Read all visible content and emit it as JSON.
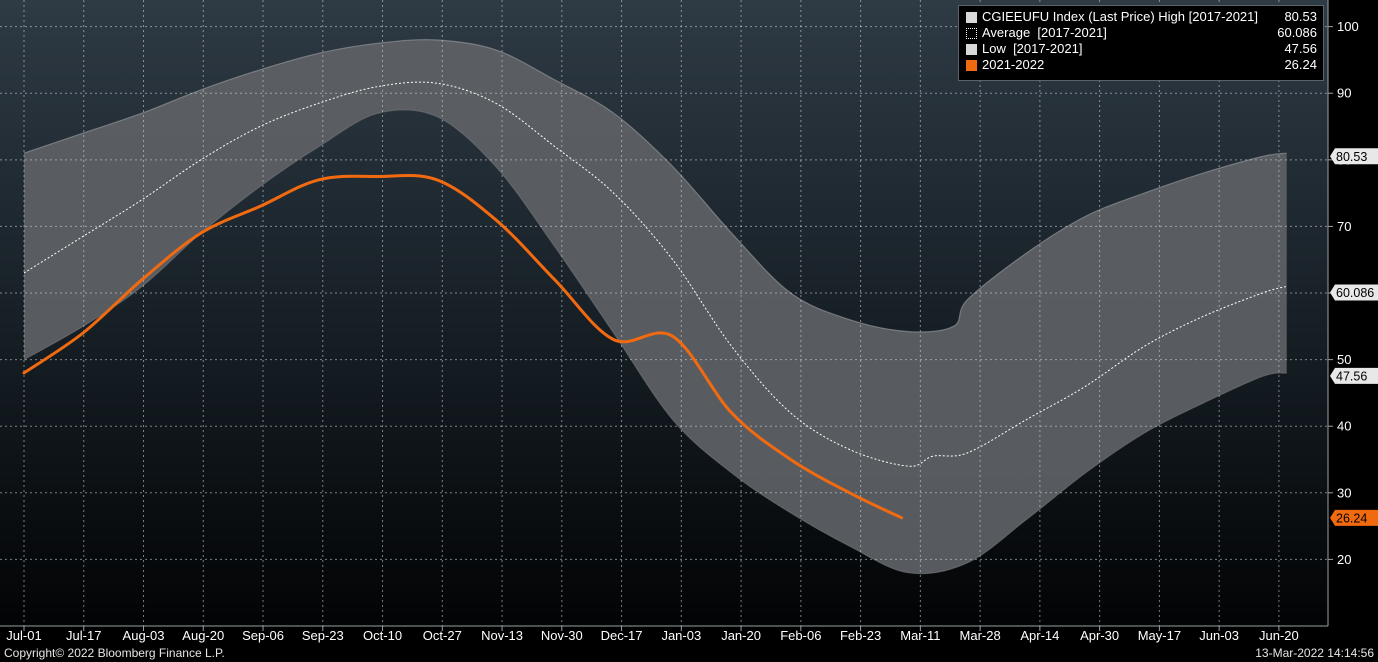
{
  "chart_data": {
    "type": "line",
    "title": "",
    "xlabel": "",
    "ylabel": "",
    "ylim": [
      10,
      104
    ],
    "grid": true,
    "legend_placement": "top-right",
    "x_tick_labels": [
      "Jul-01",
      "Jul-17",
      "Aug-03",
      "Aug-20",
      "Sep-06",
      "Sep-23",
      "Oct-10",
      "Oct-27",
      "Nov-13",
      "Nov-30",
      "Dec-17",
      "Jan-03",
      "Jan-20",
      "Feb-06",
      "Feb-23",
      "Mar-11",
      "Mar-28",
      "Apr-14",
      "Apr-30",
      "May-17",
      "Jun-03",
      "Jun-20"
    ],
    "y_ticks": [
      20,
      30,
      40,
      50,
      60,
      70,
      80,
      90,
      100
    ],
    "x_range": [
      0,
      369
    ],
    "series": [
      {
        "name": "CGIEEUFU Index (Last Price) High [2017-2021]",
        "legend_value": "80.53",
        "last_value_label": "80.53",
        "color": "#8e9195",
        "x": [
          0,
          17,
          34,
          51,
          68,
          85,
          102,
          119,
          136,
          153,
          170,
          187,
          204,
          221,
          238,
          255,
          268,
          272,
          289,
          306,
          323,
          340,
          357,
          364
        ],
        "y": [
          81,
          84,
          87,
          90.5,
          93.5,
          96,
          97.5,
          98,
          96.5,
          92,
          87,
          79,
          69,
          60,
          56,
          54.2,
          55,
          59,
          66,
          71.5,
          75,
          78,
          80.5,
          81
        ]
      },
      {
        "name": "Average  [2017-2021]",
        "legend_value": "60.086",
        "last_value_label": "60.086",
        "color": "#ffffff",
        "x": [
          0,
          17,
          34,
          51,
          68,
          85,
          102,
          119,
          136,
          153,
          170,
          187,
          204,
          221,
          238,
          255,
          262,
          272,
          289,
          306,
          323,
          340,
          357,
          364
        ],
        "y": [
          63,
          68.5,
          74,
          80,
          85,
          88.5,
          91,
          91.5,
          88.5,
          82,
          75,
          65,
          52,
          42,
          36.5,
          34,
          35.5,
          36,
          41,
          46,
          52,
          56.5,
          60,
          61
        ]
      },
      {
        "name": "Low  [2017-2021]",
        "legend_value": "47.56",
        "last_value_label": "47.56",
        "color": "#6d7074",
        "x": [
          0,
          17,
          34,
          51,
          68,
          85,
          102,
          119,
          136,
          153,
          170,
          187,
          204,
          221,
          238,
          255,
          272,
          289,
          306,
          323,
          340,
          357,
          364
        ],
        "y": [
          50,
          55,
          61,
          69,
          76,
          82,
          87,
          86.5,
          79,
          67,
          54,
          41,
          33,
          27,
          22,
          18,
          19.5,
          26,
          33,
          39,
          43.5,
          47.5,
          48
        ]
      },
      {
        "name": "2021-2022",
        "legend_value": "26.24",
        "last_value_label": "26.24",
        "color": "#f26a10",
        "x": [
          0,
          17,
          34,
          51,
          68,
          85,
          102,
          119,
          136,
          153,
          170,
          187,
          204,
          221,
          238,
          253
        ],
        "y": [
          48,
          54,
          62,
          69,
          73,
          77,
          77.5,
          77,
          71,
          62,
          53,
          53.5,
          42,
          35,
          30,
          26.24
        ]
      }
    ]
  },
  "footer": {
    "copyright": "Copyright© 2022 Bloomberg Finance L.P.",
    "timestamp": "13-Mar-2022 14:14:56"
  }
}
